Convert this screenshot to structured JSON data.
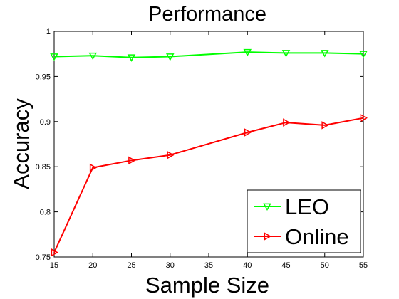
{
  "chart_data": {
    "type": "line",
    "title": "Performance",
    "xlabel": "Sample Size",
    "ylabel": "Accuracy",
    "xlim": [
      15,
      55
    ],
    "ylim": [
      0.75,
      1
    ],
    "x_ticks": [
      "15",
      "20",
      "25",
      "30",
      "35",
      "40",
      "45",
      "50",
      "55"
    ],
    "y_ticks": [
      "0.75",
      "0.8",
      "0.85",
      "0.9",
      "0.95",
      "1"
    ],
    "grid": false,
    "legend_position": "bottom-right",
    "x": [
      15,
      20,
      25,
      30,
      40,
      45,
      50,
      55
    ],
    "series": [
      {
        "name": "LEO",
        "color": "#00ff00",
        "marker": "triangle-down",
        "values": [
          0.972,
          0.973,
          0.971,
          0.972,
          0.977,
          0.976,
          0.976,
          0.975
        ]
      },
      {
        "name": "Online",
        "color": "#ff0000",
        "marker": "triangle-right",
        "values": [
          0.755,
          0.849,
          0.857,
          0.863,
          0.888,
          0.899,
          0.896,
          0.904
        ]
      }
    ]
  }
}
